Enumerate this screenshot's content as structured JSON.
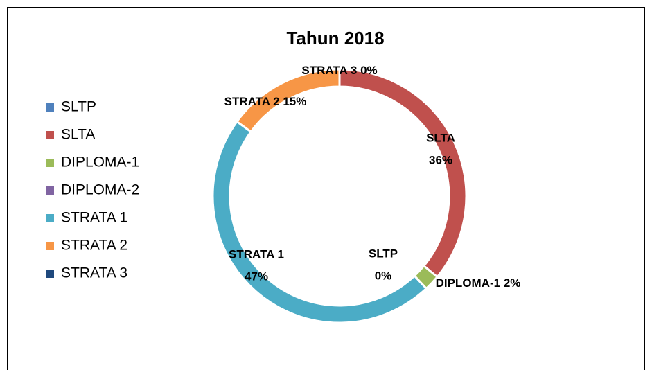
{
  "chart_data": {
    "type": "donut",
    "title": "Tahun 2018",
    "categories": [
      "SLTP",
      "SLTA",
      "DIPLOMA-1",
      "DIPLOMA-2",
      "STRATA 1",
      "STRATA 2",
      "STRATA 3"
    ],
    "values": [
      0,
      36,
      2,
      0,
      47,
      15,
      0
    ],
    "value_labels": [
      "0%",
      "36%",
      "2%",
      null,
      "47%",
      "15%",
      "0%"
    ],
    "colors": [
      "#4f81bd",
      "#c0504d",
      "#9bbb59",
      "#8064a2",
      "#4bacc6",
      "#f79646",
      "#1f497d"
    ],
    "legend": "left"
  }
}
